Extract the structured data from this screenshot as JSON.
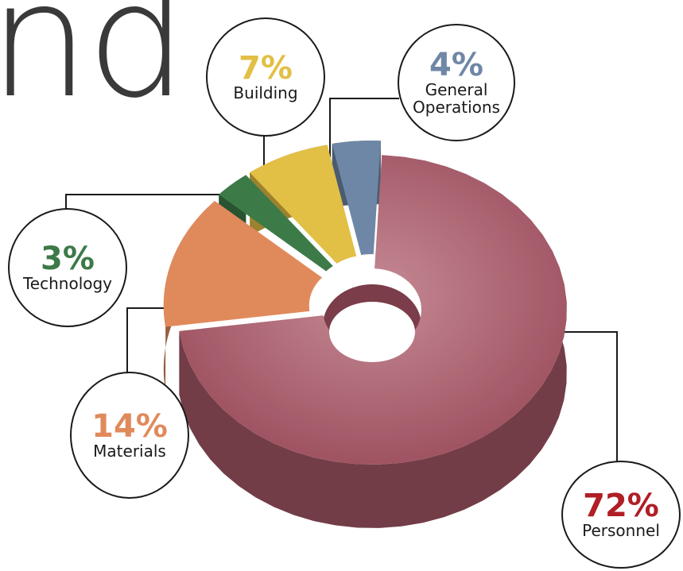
{
  "title_fragment": "nd",
  "chart_data": {
    "type": "pie",
    "style": "3d-donut",
    "slices": [
      {
        "label": "Personnel",
        "value": 72,
        "value_label": "72%",
        "color": "#a85a68"
      },
      {
        "label": "Materials",
        "value": 14,
        "value_label": "14%",
        "color": "#e08a5c"
      },
      {
        "label": "Technology",
        "value": 3,
        "value_label": "3%",
        "color": "#3c7a48"
      },
      {
        "label": "Building",
        "value": 7,
        "value_label": "7%",
        "color": "#e2bf45"
      },
      {
        "label": "General\nOperations",
        "value": 4,
        "value_label": "4%",
        "color": "#6f87a6"
      }
    ]
  },
  "colors": {
    "personnel_text": "#b01e26",
    "materials_text": "#e08a5c",
    "technology_text": "#3c7a48",
    "building_text": "#e2bf45",
    "general_operations_text": "#6f87a6"
  }
}
